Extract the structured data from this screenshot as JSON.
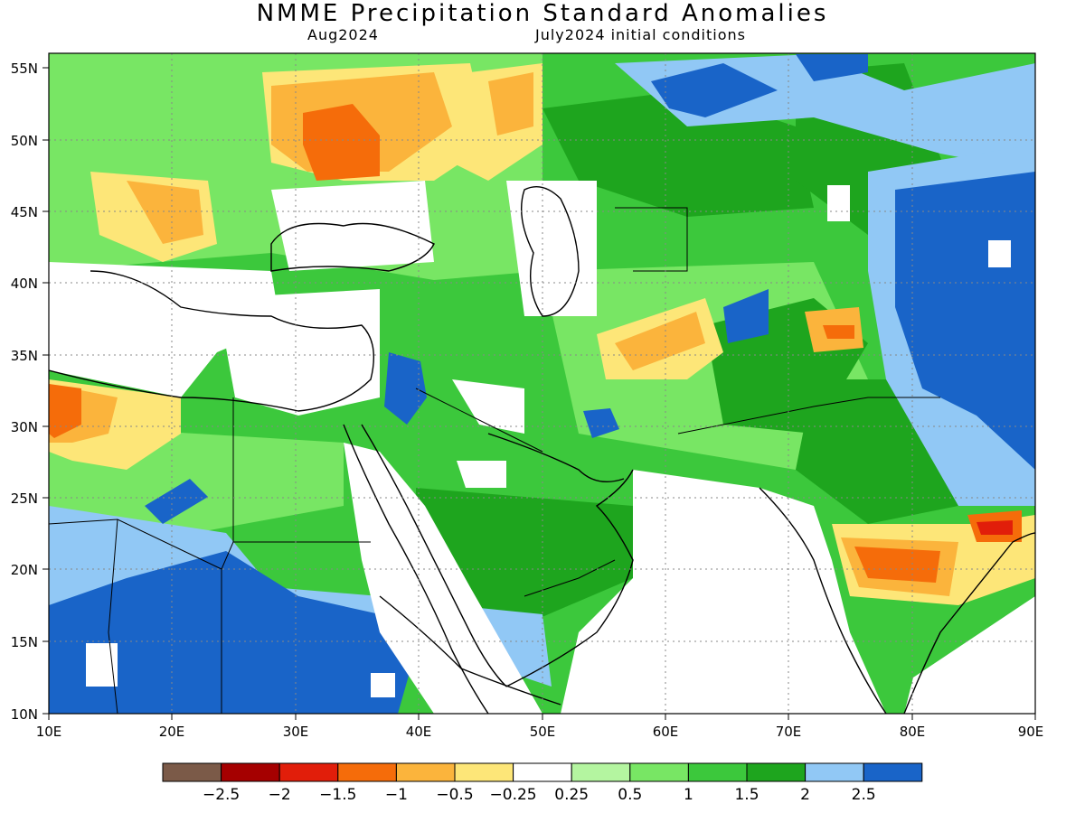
{
  "title": "NMME Precipitation Standard Anomalies",
  "subtitle_left": "Aug2024",
  "subtitle_right": "July2024 initial conditions",
  "lon_ticks": [
    "10E",
    "20E",
    "30E",
    "40E",
    "50E",
    "60E",
    "70E",
    "80E",
    "90E"
  ],
  "lat_ticks": [
    "10N",
    "15N",
    "20N",
    "25N",
    "30N",
    "35N",
    "40N",
    "45N",
    "50N",
    "55N"
  ],
  "colorbar": {
    "colors": [
      "#7b5a48",
      "#a50000",
      "#e11e0a",
      "#f56c0a",
      "#fbb43c",
      "#fde678",
      "#ffffff",
      "#b4f5a0",
      "#78e664",
      "#3cc83c",
      "#1ea51e",
      "#91c8f5",
      "#1964c8"
    ],
    "labels": [
      "−2.5",
      "−2",
      "−1.5",
      "−1",
      "−0.5",
      "−0.25",
      "0.25",
      "0.5",
      "1",
      "1.5",
      "2",
      "2.5"
    ]
  }
}
